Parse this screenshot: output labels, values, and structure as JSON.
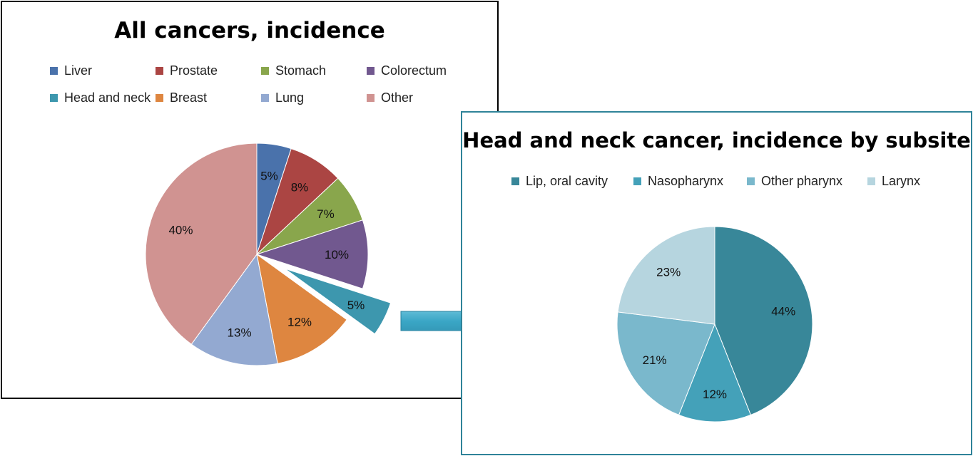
{
  "chart_data": [
    {
      "type": "pie",
      "title": "All cancers, incidence",
      "categories": [
        "Liver",
        "Prostate",
        "Stomach",
        "Colorectum",
        "Head and neck",
        "Breast",
        "Lung",
        "Other"
      ],
      "values": [
        5,
        8,
        7,
        10,
        5,
        12,
        13,
        40
      ],
      "labels": [
        "5%",
        "8%",
        "7%",
        "10%",
        "5%",
        "12%",
        "13%",
        "40%"
      ],
      "colors": [
        "#4a72ab",
        "#ab4543",
        "#89a64c",
        "#71588f",
        "#3d97ae",
        "#de8640",
        "#93a9d1",
        "#d09391"
      ],
      "exploded_slice": "Head and neck",
      "legend_position": "top"
    },
    {
      "type": "pie",
      "title": "Head and neck cancer, incidence by subsite",
      "categories": [
        "Lip, oral cavity",
        "Nasopharynx",
        "Other pharynx",
        "Larynx"
      ],
      "values": [
        44,
        12,
        21,
        23
      ],
      "labels": [
        "44%",
        "12%",
        "21%",
        "23%"
      ],
      "colors": [
        "#388799",
        "#44a1b9",
        "#7ab8cc",
        "#b6d5df"
      ],
      "legend_position": "top"
    }
  ]
}
